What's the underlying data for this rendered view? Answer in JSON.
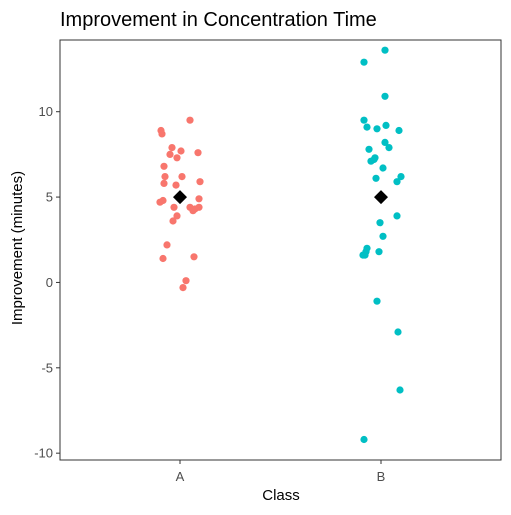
{
  "chart_data": {
    "type": "scatter",
    "title": "Improvement in Concentration Time",
    "xlabel": "Class",
    "ylabel": "Improvement (minutes)",
    "categories": [
      "A",
      "B"
    ],
    "ylim": [
      -10.4,
      14.2
    ],
    "yticks": [
      -10,
      -5,
      0,
      5,
      10
    ],
    "grid": false,
    "legend": "none",
    "colors": {
      "A": "#F8766D",
      "B": "#00BFC4",
      "mean": "#000000",
      "panel_border": "#333333",
      "tick_text": "#4d4d4d"
    },
    "series": [
      {
        "name": "A",
        "points": [
          {
            "x": -0.19,
            "y": 8.9
          },
          {
            "x": -0.18,
            "y": 8.7
          },
          {
            "x": 0.1,
            "y": 9.5
          },
          {
            "x": -0.08,
            "y": 7.9
          },
          {
            "x": -0.1,
            "y": 7.5
          },
          {
            "x": -0.03,
            "y": 7.3
          },
          {
            "x": 0.01,
            "y": 7.7
          },
          {
            "x": 0.18,
            "y": 7.6
          },
          {
            "x": -0.16,
            "y": 6.8
          },
          {
            "x": -0.15,
            "y": 6.2
          },
          {
            "x": 0.02,
            "y": 6.2
          },
          {
            "x": -0.16,
            "y": 5.8
          },
          {
            "x": -0.04,
            "y": 5.7
          },
          {
            "x": 0.2,
            "y": 5.9
          },
          {
            "x": 0.1,
            "y": 4.4
          },
          {
            "x": 0.13,
            "y": 4.2
          },
          {
            "x": 0.15,
            "y": 4.3
          },
          {
            "x": 0.19,
            "y": 4.4
          },
          {
            "x": 0.19,
            "y": 4.9
          },
          {
            "x": -0.2,
            "y": 4.7
          },
          {
            "x": -0.17,
            "y": 4.8
          },
          {
            "x": -0.06,
            "y": 4.4
          },
          {
            "x": -0.07,
            "y": 3.6
          },
          {
            "x": -0.03,
            "y": 3.9
          },
          {
            "x": -0.13,
            "y": 2.2
          },
          {
            "x": -0.17,
            "y": 1.4
          },
          {
            "x": 0.14,
            "y": 1.5
          },
          {
            "x": 0.06,
            "y": 0.1
          },
          {
            "x": 0.03,
            "y": -0.3
          }
        ],
        "mean": 5.0
      },
      {
        "name": "B",
        "points": [
          {
            "x": 0.04,
            "y": 13.6
          },
          {
            "x": -0.17,
            "y": 12.9
          },
          {
            "x": 0.04,
            "y": 10.9
          },
          {
            "x": -0.17,
            "y": 9.5
          },
          {
            "x": -0.14,
            "y": 9.1
          },
          {
            "x": -0.04,
            "y": 9.0
          },
          {
            "x": 0.05,
            "y": 9.2
          },
          {
            "x": 0.18,
            "y": 8.9
          },
          {
            "x": 0.04,
            "y": 8.2
          },
          {
            "x": 0.08,
            "y": 7.9
          },
          {
            "x": -0.12,
            "y": 7.8
          },
          {
            "x": -0.07,
            "y": 7.2
          },
          {
            "x": -0.1,
            "y": 7.1
          },
          {
            "x": -0.06,
            "y": 7.3
          },
          {
            "x": 0.02,
            "y": 6.7
          },
          {
            "x": -0.05,
            "y": 6.1
          },
          {
            "x": 0.2,
            "y": 6.2
          },
          {
            "x": 0.16,
            "y": 5.9
          },
          {
            "x": 0.16,
            "y": 3.9
          },
          {
            "x": -0.01,
            "y": 3.5
          },
          {
            "x": 0.02,
            "y": 2.7
          },
          {
            "x": -0.14,
            "y": 2.0
          },
          {
            "x": -0.15,
            "y": 1.8
          },
          {
            "x": -0.02,
            "y": 1.8
          },
          {
            "x": -0.16,
            "y": 1.6
          },
          {
            "x": -0.18,
            "y": 1.6
          },
          {
            "x": -0.04,
            "y": -1.1
          },
          {
            "x": 0.17,
            "y": -2.9
          },
          {
            "x": 0.19,
            "y": -6.3
          },
          {
            "x": -0.17,
            "y": -9.2
          }
        ],
        "mean": 5.0
      }
    ]
  }
}
